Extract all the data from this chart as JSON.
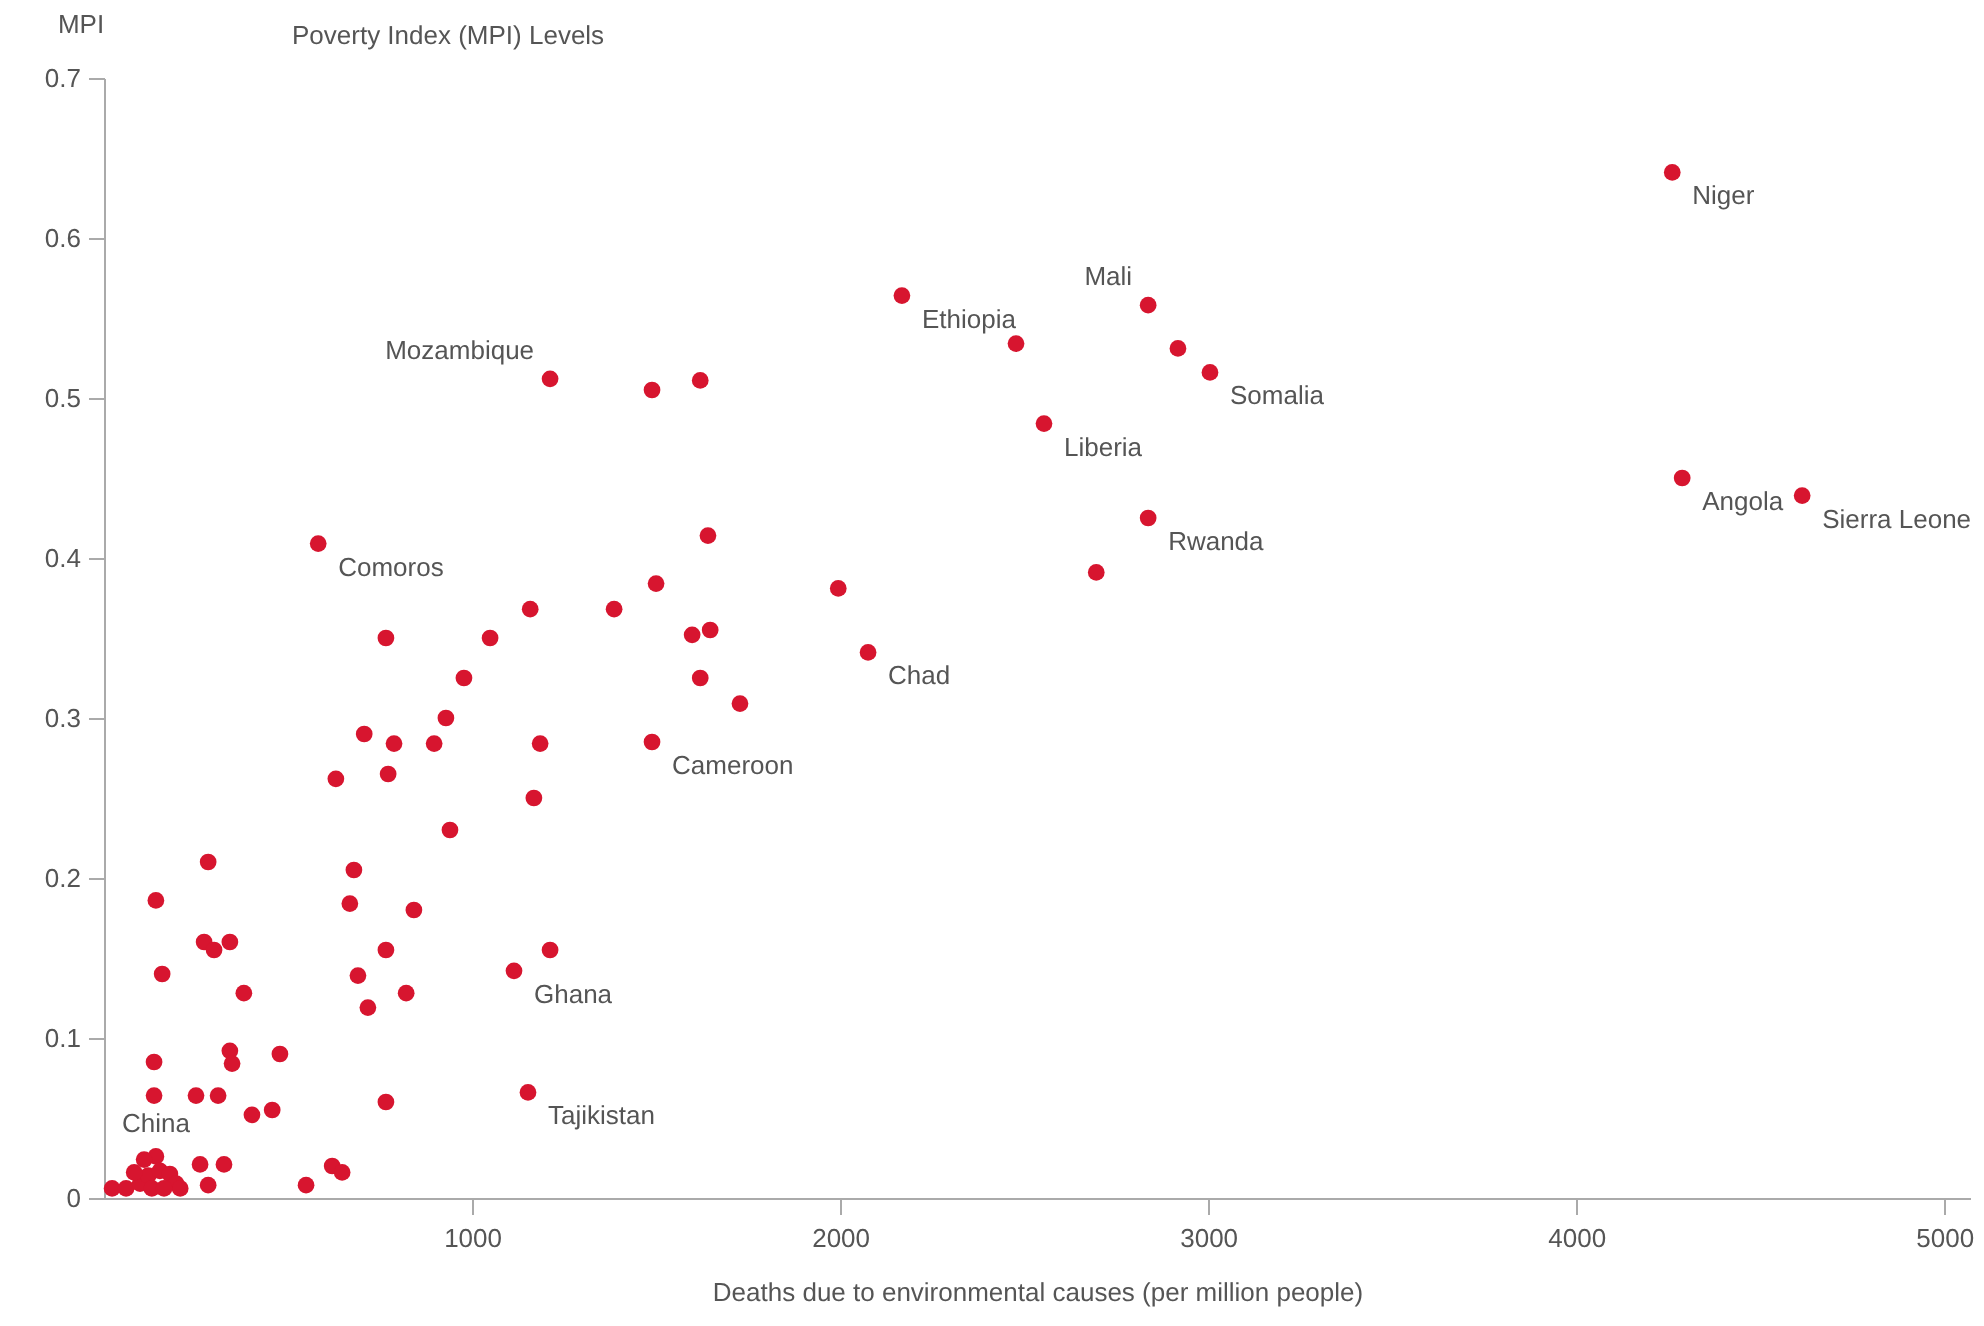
{
  "chart_data": {
    "type": "scatter",
    "title": "Poverty Index (MPI) Levels",
    "xlabel": "Deaths due to environmental causes (per million people)",
    "ylabel": "MPI",
    "xlim": [
      0,
      5070
    ],
    "ylim": [
      0,
      0.7
    ],
    "xticks": [
      1000,
      2000,
      3000,
      4000,
      5000
    ],
    "yticks": [
      0,
      0.1,
      0.2,
      0.3,
      0.4,
      0.5,
      0.6,
      0.7
    ],
    "grid": false,
    "legend": false,
    "marker": "circle",
    "x": [
      4261,
      2168,
      2837,
      3005,
      2554,
      4288,
      4614,
      2837,
      2076,
      1489,
      1212,
      582,
      1114,
      1152,
      141,
      2478,
      2918,
      1620,
      1489,
      2696,
      1995,
      1641,
      1500,
      1386,
      1158,
      1647,
      1598,
      1049,
      766,
      978,
      1620,
      1728,
      929,
      707,
      897,
      788,
      1185,
      630,
      772,
      1168,
      940,
      283,
      679,
      668,
      141,
      842,
      272,
      342,
      299,
      766,
      1212,
      158,
      690,
      380,
      821,
      717,
      342,
      478,
      348,
      136,
      136,
      250,
      310,
      766,
      402,
      457,
      261,
      326,
      620,
      647,
      549,
      283,
      22,
      60,
      98,
      120,
      152,
      179,
      196,
      130,
      82,
      207,
      163,
      109
    ],
    "series": [
      {
        "color": "#d7152f",
        "values": [
          0.641,
          0.564,
          0.558,
          0.516,
          0.484,
          0.45,
          0.439,
          0.425,
          0.341,
          0.285,
          0.512,
          0.409,
          0.142,
          0.066,
          0.026,
          0.534,
          0.531,
          0.511,
          0.505,
          0.391,
          0.381,
          0.414,
          0.384,
          0.368,
          0.368,
          0.355,
          0.352,
          0.35,
          0.35,
          0.325,
          0.325,
          0.309,
          0.3,
          0.29,
          0.284,
          0.284,
          0.284,
          0.262,
          0.265,
          0.25,
          0.23,
          0.21,
          0.205,
          0.184,
          0.186,
          0.18,
          0.16,
          0.16,
          0.155,
          0.155,
          0.155,
          0.14,
          0.139,
          0.128,
          0.128,
          0.119,
          0.092,
          0.09,
          0.084,
          0.085,
          0.064,
          0.064,
          0.064,
          0.06,
          0.052,
          0.055,
          0.021,
          0.021,
          0.02,
          0.016,
          0.008,
          0.008,
          0.006,
          0.006,
          0.009,
          0.014,
          0.017,
          0.015,
          0.009,
          0.006,
          0.016,
          0.006,
          0.006,
          0.024
        ]
      }
    ],
    "annotations": [
      {
        "text": "Niger",
        "x": 4261,
        "y": 0.641
      },
      {
        "text": "Ethiopia",
        "x": 2168,
        "y": 0.564
      },
      {
        "text": "Mali",
        "x": 2837,
        "y": 0.558
      },
      {
        "text": "Somalia",
        "x": 3005,
        "y": 0.516
      },
      {
        "text": "Liberia",
        "x": 2554,
        "y": 0.484
      },
      {
        "text": "Angola",
        "x": 4288,
        "y": 0.45
      },
      {
        "text": "Sierra Leone",
        "x": 4614,
        "y": 0.439
      },
      {
        "text": "Rwanda",
        "x": 2837,
        "y": 0.425
      },
      {
        "text": "Chad",
        "x": 2076,
        "y": 0.341
      },
      {
        "text": "Cameroon",
        "x": 1489,
        "y": 0.285
      },
      {
        "text": "Mozambique",
        "x": 1212,
        "y": 0.512
      },
      {
        "text": "Comoros",
        "x": 582,
        "y": 0.409
      },
      {
        "text": "Ghana",
        "x": 1114,
        "y": 0.142
      },
      {
        "text": "Tajikistan",
        "x": 1152,
        "y": 0.066
      },
      {
        "text": "China",
        "x": 141,
        "y": 0.026
      }
    ]
  }
}
